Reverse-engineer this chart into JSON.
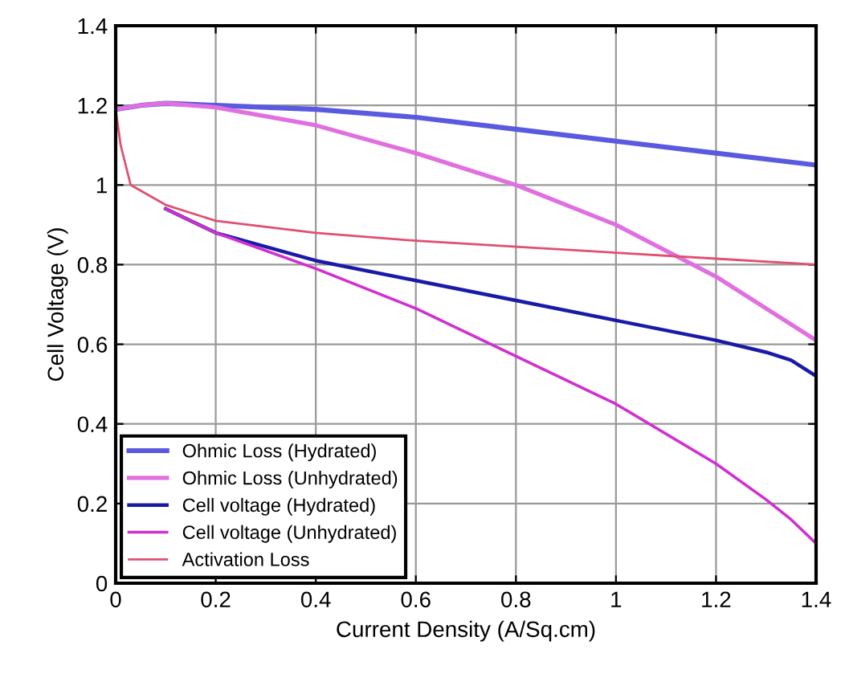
{
  "chart_data": {
    "type": "line",
    "xlabel": "Current Density (A/Sq.cm)",
    "ylabel": "Cell Voltage (V)",
    "xlim": [
      0,
      1.4
    ],
    "ylim": [
      0,
      1.4
    ],
    "xticks": [
      0,
      0.2,
      0.4,
      0.6,
      0.8,
      1,
      1.2,
      1.4
    ],
    "yticks": [
      0,
      0.2,
      0.4,
      0.6,
      0.8,
      1,
      1.2,
      1.4
    ],
    "grid": true,
    "legend": "bottom left",
    "line_style": "solid",
    "series": [
      {
        "name": "Ohmic Loss (Hydrated)",
        "color": "#5a5ae0",
        "x": [
          0,
          0.05,
          0.1,
          0.2,
          0.4,
          0.6,
          0.8,
          1.0,
          1.2,
          1.4
        ],
        "values": [
          1.19,
          1.2,
          1.205,
          1.2,
          1.19,
          1.17,
          1.14,
          1.11,
          1.08,
          1.05
        ]
      },
      {
        "name": "Ohmic Loss (Unhydrated)",
        "color": "#e070e0",
        "x": [
          0,
          0.05,
          0.1,
          0.2,
          0.4,
          0.6,
          0.8,
          1.0,
          1.2,
          1.4
        ],
        "values": [
          1.19,
          1.2,
          1.205,
          1.195,
          1.15,
          1.08,
          1.0,
          0.9,
          0.77,
          0.61
        ]
      },
      {
        "name": "Cell voltage (Hydrated)",
        "color": "#1a1aa8",
        "x": [
          0.1,
          0.2,
          0.4,
          0.6,
          0.8,
          1.0,
          1.2,
          1.3,
          1.35,
          1.4
        ],
        "values": [
          0.94,
          0.88,
          0.81,
          0.76,
          0.71,
          0.66,
          0.61,
          0.58,
          0.56,
          0.52
        ]
      },
      {
        "name": "Cell voltage (Unhydrated)",
        "color": "#d030d0",
        "x": [
          0.1,
          0.2,
          0.4,
          0.6,
          0.8,
          1.0,
          1.2,
          1.3,
          1.35,
          1.4
        ],
        "values": [
          0.94,
          0.88,
          0.79,
          0.69,
          0.57,
          0.45,
          0.3,
          0.21,
          0.16,
          0.1
        ]
      },
      {
        "name": "Activation Loss",
        "color": "#e05070",
        "x": [
          0,
          0.01,
          0.03,
          0.1,
          0.2,
          0.4,
          0.6,
          0.8,
          1.0,
          1.2,
          1.4
        ],
        "values": [
          1.19,
          1.1,
          1.0,
          0.95,
          0.91,
          0.88,
          0.86,
          0.845,
          0.83,
          0.815,
          0.8
        ]
      }
    ]
  }
}
